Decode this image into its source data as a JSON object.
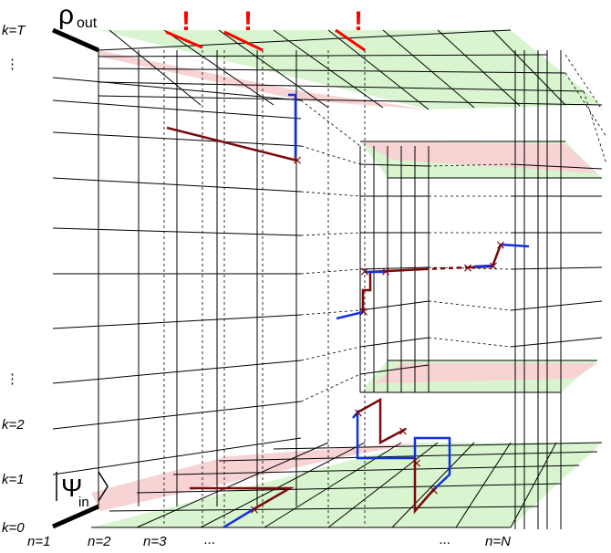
{
  "labels": {
    "k_T": "k=T",
    "k_2": "k=2",
    "k_1": "k=1",
    "k_0": "k=0",
    "vdots_top": "⋮",
    "vdots_bottom": "⋮",
    "rho": "ρ",
    "rho_sub": "out",
    "psi": "Ψ",
    "psi_sub": "in",
    "n1": "n=1",
    "n2": "n=2",
    "n3": "n=3",
    "ell1": "...",
    "ell2": "...",
    "nN": "n=N",
    "excl1": "!",
    "excl2": "!",
    "excl3": "!"
  },
  "colors": {
    "green": "#d8f5d0",
    "pink": "#f8d3d3",
    "grid": "#000000",
    "path": "#7a0a0a",
    "blue": "#1030e0",
    "red": "#ff0000"
  }
}
